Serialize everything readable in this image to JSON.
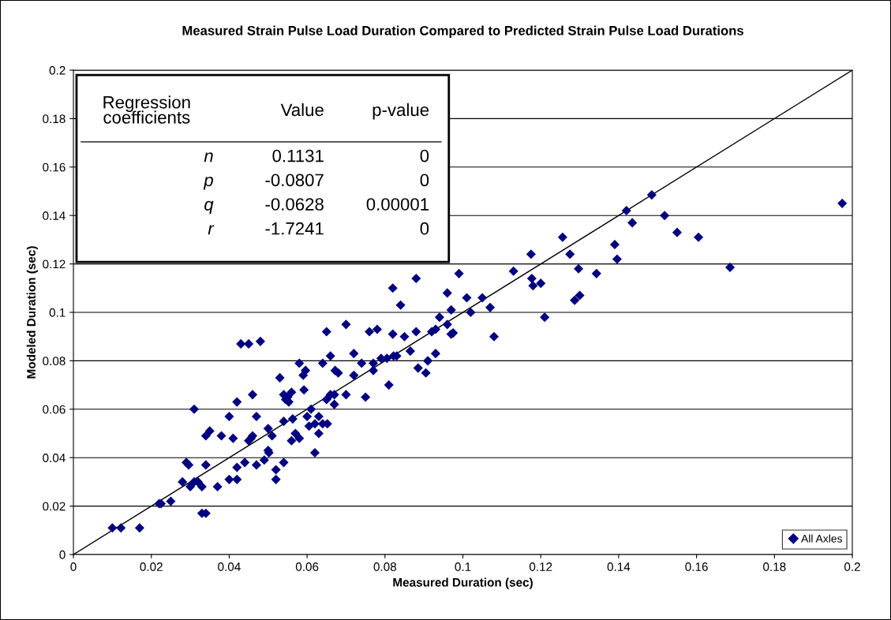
{
  "chart_data": {
    "type": "scatter",
    "title": "Measured Strain Pulse Load Duration Compared to Predicted Strain Pulse Load Durations",
    "xlabel": "Measured Duration (sec)",
    "ylabel": "Modeled Duration (sec)",
    "xlim": [
      0,
      0.2
    ],
    "ylim": [
      0,
      0.2
    ],
    "xticks": [
      0,
      0.02,
      0.04,
      0.06,
      0.08,
      0.1,
      0.12,
      0.14,
      0.16,
      0.18,
      0.2
    ],
    "yticks": [
      0,
      0.02,
      0.04,
      0.06,
      0.08,
      0.1,
      0.12,
      0.14,
      0.16,
      0.18,
      0.2
    ],
    "grid": "y",
    "legend": "bottom right",
    "series": [
      {
        "name": "All Axles",
        "color": "#000080",
        "marker": "diamond",
        "x": [
          0.01,
          0.0122,
          0.017,
          0.022,
          0.0225,
          0.025,
          0.029,
          0.0296,
          0.028,
          0.03,
          0.031,
          0.032,
          0.031,
          0.033,
          0.034,
          0.033,
          0.034,
          0.034,
          0.035,
          0.037,
          0.038,
          0.04,
          0.04,
          0.041,
          0.042,
          0.042,
          0.042,
          0.043,
          0.045,
          0.048,
          0.044,
          0.045,
          0.0456,
          0.046,
          0.046,
          0.047,
          0.047,
          0.049,
          0.05,
          0.05,
          0.0502,
          0.051,
          0.052,
          0.052,
          0.053,
          0.054,
          0.054,
          0.054,
          0.0545,
          0.055,
          0.0553,
          0.056,
          0.056,
          0.0563,
          0.057,
          0.058,
          0.058,
          0.059,
          0.0592,
          0.06,
          0.0596,
          0.0605,
          0.061,
          0.062,
          0.062,
          0.063,
          0.063,
          0.064,
          0.064,
          0.065,
          0.065,
          0.0652,
          0.066,
          0.066,
          0.067,
          0.067,
          0.0672,
          0.068,
          0.07,
          0.07,
          0.072,
          0.072,
          0.074,
          0.075,
          0.076,
          0.077,
          0.077,
          0.078,
          0.079,
          0.0805,
          0.081,
          0.082,
          0.082,
          0.0822,
          0.083,
          0.084,
          0.085,
          0.0865,
          0.088,
          0.088,
          0.0885,
          0.0905,
          0.091,
          0.092,
          0.093,
          0.093,
          0.094,
          0.096,
          0.096,
          0.097,
          0.097,
          0.0975,
          0.099,
          0.101,
          0.102,
          0.105,
          0.107,
          0.108,
          0.113,
          0.1175,
          0.1177,
          0.118,
          0.12,
          0.121,
          0.1256,
          0.1275,
          0.1297,
          0.1287,
          0.13,
          0.1343,
          0.139,
          0.1396,
          0.142,
          0.1435,
          0.1485,
          0.1518,
          0.155,
          0.1605,
          0.1686,
          0.1974
        ],
        "values": [
          0.011,
          0.011,
          0.011,
          0.021,
          0.021,
          0.022,
          0.038,
          0.037,
          0.03,
          0.028,
          0.03,
          0.03,
          0.06,
          0.017,
          0.017,
          0.028,
          0.037,
          0.049,
          0.051,
          0.028,
          0.049,
          0.057,
          0.031,
          0.048,
          0.036,
          0.031,
          0.063,
          0.087,
          0.087,
          0.088,
          0.038,
          0.047,
          0.048,
          0.066,
          0.049,
          0.057,
          0.037,
          0.039,
          0.052,
          0.043,
          0.042,
          0.049,
          0.031,
          0.035,
          0.073,
          0.066,
          0.038,
          0.055,
          0.064,
          0.065,
          0.063,
          0.067,
          0.047,
          0.056,
          0.05,
          0.048,
          0.079,
          0.074,
          0.068,
          0.057,
          0.076,
          0.053,
          0.06,
          0.054,
          0.042,
          0.057,
          0.05,
          0.054,
          0.079,
          0.064,
          0.092,
          0.054,
          0.066,
          0.082,
          0.062,
          0.066,
          0.076,
          0.075,
          0.066,
          0.095,
          0.083,
          0.074,
          0.079,
          0.065,
          0.092,
          0.076,
          0.079,
          0.093,
          0.081,
          0.081,
          0.07,
          0.11,
          0.091,
          0.082,
          0.082,
          0.103,
          0.09,
          0.084,
          0.114,
          0.092,
          0.077,
          0.075,
          0.08,
          0.092,
          0.093,
          0.083,
          0.098,
          0.095,
          0.108,
          0.101,
          0.091,
          0.0915,
          0.116,
          0.106,
          0.1,
          0.106,
          0.102,
          0.09,
          0.117,
          0.124,
          0.114,
          0.111,
          0.112,
          0.098,
          0.131,
          0.124,
          0.118,
          0.105,
          0.107,
          0.116,
          0.128,
          0.122,
          0.142,
          0.137,
          0.1485,
          0.14,
          0.133,
          0.131,
          0.1186,
          0.145
        ]
      },
      {
        "type": "line",
        "color": "#000000",
        "x": [
          0,
          0.2
        ],
        "values": [
          0,
          0.2
        ]
      }
    ],
    "annotations": [
      "Regression\ncoefficients",
      "Value",
      "p-value",
      "n",
      "0.1131",
      "0",
      "p",
      "-0.0807",
      "0",
      "q",
      "-0.0628",
      "0.00001",
      "r",
      "-1.7241",
      "0"
    ]
  }
}
